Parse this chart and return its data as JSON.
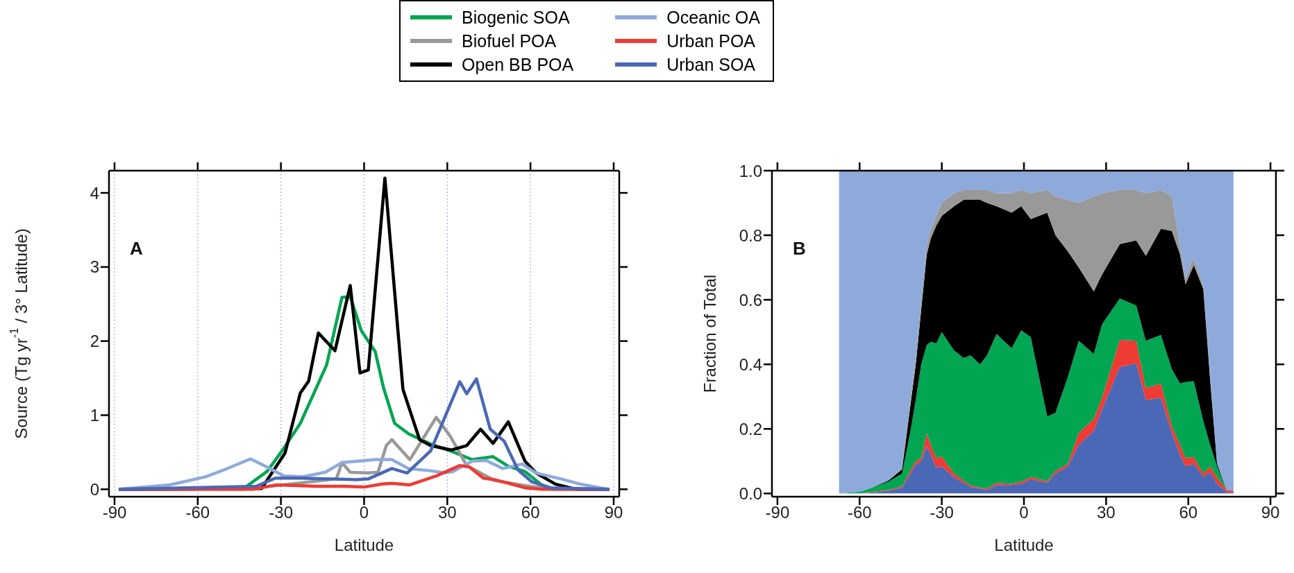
{
  "chart_data": [
    {
      "type": "line",
      "xlabel": "Latitude",
      "ylabel": "Source (Tg yr$^{-1}$ / 3° Latitude)",
      "annotations": [
        "A"
      ],
      "xlim": [
        -92,
        92
      ],
      "ylim": [
        -0.1,
        4.3
      ],
      "xticks": [
        -90,
        -60,
        -30,
        0,
        30,
        60,
        90
      ],
      "yticks": [
        0,
        1,
        2,
        3,
        4
      ],
      "grid": "x",
      "legend": "top",
      "series": [
        {
          "name": "Biogenic SOA",
          "color": "#00a651",
          "x": [
            -88.5,
            -43.5,
            -35,
            -29,
            -23,
            -13.5,
            -8,
            -5,
            -1,
            4,
            7,
            11,
            16,
            24,
            31,
            39,
            46.5,
            52,
            58,
            64,
            68,
            88.5
          ],
          "values": [
            0,
            0.01,
            0.24,
            0.55,
            0.89,
            1.68,
            2.59,
            2.6,
            2.14,
            1.86,
            1.37,
            0.89,
            0.75,
            0.61,
            0.52,
            0.4,
            0.44,
            0.31,
            0.24,
            0.06,
            0.01,
            0
          ]
        },
        {
          "name": "Biofuel POA",
          "color": "#999999",
          "x": [
            -88.5,
            -43.5,
            -10,
            -8,
            -5,
            1.5,
            5,
            8,
            10,
            16.5,
            26,
            31,
            37,
            47,
            58,
            68,
            88.5
          ],
          "values": [
            0,
            0,
            0.14,
            0.36,
            0.23,
            0.22,
            0.23,
            0.59,
            0.67,
            0.4,
            0.97,
            0.72,
            0.32,
            0.12,
            0.05,
            0,
            0
          ]
        },
        {
          "name": "Open BB POA",
          "color": "#000000",
          "x": [
            -88.5,
            -37,
            -28.5,
            -23,
            -20,
            -16.5,
            -10.5,
            -5,
            -1.5,
            1.5,
            7.5,
            14,
            20,
            24,
            31.5,
            37,
            42,
            46.5,
            52,
            58,
            62,
            69,
            76.5,
            88.5
          ],
          "values": [
            0,
            0.01,
            0.49,
            1.3,
            1.46,
            2.11,
            1.87,
            2.75,
            1.57,
            1.61,
            4.2,
            1.35,
            0.67,
            0.59,
            0.53,
            0.59,
            0.81,
            0.62,
            0.91,
            0.38,
            0.22,
            0.07,
            0,
            0
          ]
        },
        {
          "name": "Oceanic OA",
          "color": "#8eaadb",
          "x": [
            -88.5,
            -70,
            -57,
            -50,
            -41,
            -35,
            -29,
            -22,
            -14,
            -8,
            -2,
            4,
            10,
            16,
            24,
            29,
            32,
            39,
            44,
            50,
            57,
            62,
            71,
            78,
            88
          ],
          "values": [
            0,
            0.06,
            0.17,
            0.27,
            0.41,
            0.3,
            0.18,
            0.17,
            0.23,
            0.36,
            0.38,
            0.4,
            0.4,
            0.28,
            0.25,
            0.22,
            0.24,
            0.38,
            0.39,
            0.28,
            0.34,
            0.22,
            0.14,
            0.07,
            0
          ]
        },
        {
          "name": "Urban POA",
          "color": "#ee3b33",
          "x": [
            -88.5,
            -40,
            -31.5,
            -17,
            -7,
            0,
            6.5,
            10,
            16.5,
            26,
            34.5,
            38,
            43,
            47,
            58,
            64,
            88.5
          ],
          "values": [
            0,
            0,
            0.06,
            0.04,
            0.04,
            0.03,
            0.07,
            0.08,
            0.06,
            0.18,
            0.32,
            0.3,
            0.15,
            0.13,
            0.02,
            0,
            0
          ]
        },
        {
          "name": "Urban SOA",
          "color": "#4a68b5",
          "x": [
            -88.5,
            -39,
            -32,
            -22.5,
            -14,
            -3,
            1.5,
            10,
            15.5,
            24,
            34.5,
            37,
            40.5,
            45.5,
            50.5,
            55.5,
            60.5,
            67,
            88.5
          ],
          "values": [
            0,
            0.04,
            0.15,
            0.15,
            0.14,
            0.13,
            0.14,
            0.28,
            0.22,
            0.52,
            1.45,
            1.29,
            1.49,
            0.81,
            0.65,
            0.26,
            0.1,
            0.02,
            0
          ]
        }
      ]
    },
    {
      "type": "area",
      "stacked": true,
      "xlabel": "Latitude",
      "ylabel": "Fraction of Total",
      "annotations": [
        "B"
      ],
      "xlim": [
        -92,
        92
      ],
      "ylim": [
        -0.01,
        1.0
      ],
      "xticks": [
        -90,
        -60,
        -30,
        0,
        30,
        60,
        90
      ],
      "yticks": [
        {
          "value": 0,
          "label": "0.0"
        },
        {
          "value": 0.2,
          "label": "0.2"
        },
        {
          "value": 0.4,
          "label": "0.4"
        },
        {
          "value": 0.6,
          "label": "0.6"
        },
        {
          "value": 0.8,
          "label": "0.8"
        },
        {
          "value": 1,
          "label": "1.0"
        }
      ],
      "x": [
        -67.5,
        -60,
        -55.5,
        -49.5,
        -44.5,
        -41.5,
        -39.5,
        -37.5,
        -35.5,
        -34,
        -32,
        -30,
        -25.5,
        -22,
        -19.5,
        -16,
        -13.5,
        -10,
        -4.5,
        -1,
        2.5,
        8.5,
        11.5,
        16,
        20,
        25.5,
        28.5,
        35,
        41,
        44.5,
        50,
        54,
        57,
        59,
        62,
        65.5,
        68,
        70.5,
        74,
        76.5
      ],
      "series": [
        {
          "color": "#4a68b5",
          "values": [
            0,
            0,
            0.003,
            0.008,
            0.018,
            0.06,
            0.09,
            0.1,
            0.146,
            0.12,
            0.08,
            0.084,
            0.05,
            0.033,
            0.02,
            0.015,
            0.011,
            0.026,
            0.026,
            0.029,
            0.044,
            0.033,
            0.062,
            0.084,
            0.15,
            0.194,
            0.26,
            0.392,
            0.403,
            0.289,
            0.297,
            0.187,
            0.12,
            0.084,
            0.092,
            0.051,
            0.066,
            0.03,
            0.004,
            0.004
          ]
        },
        {
          "color": "#ee3b33",
          "values": [
            0,
            0,
            0.002,
            0.003,
            0.004,
            0.01,
            0.01,
            0.01,
            0.041,
            0.03,
            0.03,
            0.03,
            0.012,
            0.007,
            0.005,
            0.003,
            0.004,
            0.007,
            0.004,
            0.007,
            0.007,
            0.005,
            0.008,
            0.008,
            0.037,
            0.037,
            0.037,
            0.084,
            0.07,
            0.037,
            0.044,
            0.022,
            0.03,
            0.026,
            0.021,
            0.011,
            0.018,
            0.02,
            0.007,
            0.004
          ]
        },
        {
          "color": "#00a651",
          "values": [
            0,
            0.005,
            0.013,
            0.025,
            0.04,
            0.12,
            0.19,
            0.29,
            0.273,
            0.32,
            0.355,
            0.386,
            0.381,
            0.38,
            0.403,
            0.382,
            0.413,
            0.461,
            0.42,
            0.469,
            0.433,
            0.2,
            0.18,
            0.268,
            0.286,
            0.201,
            0.227,
            0.128,
            0.109,
            0.147,
            0.15,
            0.176,
            0.191,
            0.235,
            0.235,
            0.161,
            0.066,
            0.034,
            0,
            0
          ]
        },
        {
          "color": "#000000",
          "values": [
            0,
            0,
            0,
            0.004,
            0.013,
            0.08,
            0.11,
            0.17,
            0.28,
            0.32,
            0.365,
            0.36,
            0.447,
            0.49,
            0.482,
            0.51,
            0.472,
            0.396,
            0.42,
            0.385,
            0.366,
            0.632,
            0.55,
            0.39,
            0.227,
            0.194,
            0.154,
            0.169,
            0.202,
            0.263,
            0.329,
            0.428,
            0.399,
            0.303,
            0.359,
            0.41,
            0.2,
            0.008,
            0,
            0
          ]
        },
        {
          "color": "#999999",
          "values": [
            0,
            0,
            0,
            0,
            0.005,
            0.02,
            0.02,
            0.03,
            0.03,
            0.03,
            0.03,
            0.04,
            0.04,
            0.03,
            0.03,
            0.03,
            0.04,
            0.04,
            0.06,
            0.05,
            0.08,
            0.07,
            0.12,
            0.16,
            0.2,
            0.294,
            0.252,
            0.167,
            0.156,
            0.194,
            0.12,
            0.107,
            0.025,
            0.018,
            0.025,
            0.008,
            0.01,
            0,
            0,
            0
          ]
        },
        {
          "color": "#8eaadb",
          "values": [
            1,
            0.995,
            0.982,
            0.96,
            0.92,
            0.71,
            0.58,
            0.4,
            0.23,
            0.18,
            0.14,
            0.1,
            0.07,
            0.06,
            0.06,
            0.06,
            0.06,
            0.07,
            0.07,
            0.06,
            0.07,
            0.06,
            0.08,
            0.09,
            0.1,
            0.08,
            0.07,
            0.06,
            0.06,
            0.07,
            0.06,
            0.08,
            0.235,
            0.334,
            0.268,
            0.359,
            0.64,
            0.908,
            0.989,
            0.992
          ]
        }
      ]
    }
  ]
}
